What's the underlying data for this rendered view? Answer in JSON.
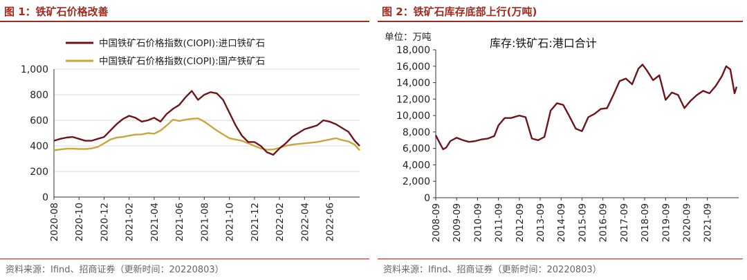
{
  "left": {
    "title": "图 1：铁矿石价格改善",
    "source": "资料来源：Ifind、招商证券（更新时间：20220803）"
  },
  "right": {
    "title": "图 2：铁矿石库存底部上行(万吨)",
    "source": "资料来源：Ifind、招商证券（更新时间：20220803）"
  },
  "chart_data": [
    {
      "type": "line",
      "title": "铁矿石价格改善",
      "ylim": [
        0,
        1000
      ],
      "yticks": [
        "1,000",
        "800",
        "600",
        "400",
        "200",
        "0"
      ],
      "ytick_values": [
        1000,
        800,
        600,
        400,
        200,
        0
      ],
      "xticks": [
        "2020-08",
        "2020-10",
        "2020-12",
        "2021-02",
        "2021-04",
        "2021-06",
        "2021-08",
        "2021-10",
        "2021-12",
        "2022-02",
        "2022-04",
        "2022-06"
      ],
      "xlim_index": [
        0,
        24.4
      ],
      "grid": true,
      "legend_position": "top",
      "colors": {
        "imported": "#6e1419",
        "domestic": "#c9a63a"
      },
      "series": [
        {
          "name": "中国铁矿石价格指数(CIOPI):进口铁矿石",
          "x": [
            0,
            0.5,
            1,
            1.5,
            2,
            2.5,
            3,
            3.5,
            4,
            4.5,
            5,
            5.5,
            6,
            6.5,
            7,
            7.5,
            8,
            8.5,
            9,
            9.5,
            10,
            10.5,
            11,
            11.5,
            12,
            12.5,
            13,
            13.5,
            14,
            14.5,
            15,
            15.5,
            16,
            16.5,
            17,
            17.5,
            18,
            18.5,
            19,
            19.5,
            20,
            20.5,
            21,
            21.5,
            22,
            22.5,
            23,
            23.5,
            24,
            24.4
          ],
          "values": [
            440,
            455,
            465,
            470,
            455,
            440,
            440,
            455,
            470,
            520,
            570,
            610,
            635,
            620,
            590,
            600,
            620,
            590,
            650,
            690,
            720,
            780,
            830,
            760,
            800,
            820,
            810,
            760,
            660,
            560,
            480,
            430,
            430,
            400,
            350,
            330,
            380,
            420,
            470,
            500,
            530,
            545,
            560,
            600,
            590,
            570,
            540,
            510,
            440,
            400
          ]
        },
        {
          "name": "中国铁矿石价格指数(CIOPI):国产铁矿石",
          "x": [
            0,
            0.5,
            1,
            1.5,
            2,
            2.5,
            3,
            3.5,
            4,
            4.5,
            5,
            5.5,
            6,
            6.5,
            7,
            7.5,
            8,
            8.5,
            9,
            9.5,
            10,
            10.5,
            11,
            11.5,
            12,
            12.5,
            13,
            13.5,
            14,
            14.5,
            15,
            15.5,
            16,
            16.5,
            17,
            17.5,
            18,
            18.5,
            19,
            19.5,
            20,
            20.5,
            21,
            21.5,
            22,
            22.5,
            23,
            23.5,
            24,
            24.4
          ],
          "values": [
            365,
            372,
            378,
            378,
            376,
            375,
            380,
            392,
            420,
            450,
            465,
            470,
            480,
            488,
            490,
            500,
            495,
            520,
            560,
            605,
            595,
            605,
            612,
            615,
            590,
            555,
            520,
            490,
            460,
            450,
            440,
            420,
            400,
            380,
            370,
            372,
            385,
            400,
            410,
            415,
            420,
            425,
            430,
            440,
            450,
            460,
            445,
            435,
            410,
            365
          ]
        }
      ]
    },
    {
      "type": "line",
      "title": "铁矿石库存底部上行(万吨)",
      "unit_label": "单位：万吨",
      "ylim": [
        0,
        18000
      ],
      "yticks": [
        "18,000",
        "16,000",
        "14,000",
        "12,000",
        "10,000",
        "8,000",
        "6,000",
        "4,000",
        "2,000",
        "0"
      ],
      "ytick_values": [
        18000,
        16000,
        14000,
        12000,
        10000,
        8000,
        6000,
        4000,
        2000,
        0
      ],
      "xticks": [
        "2008-09",
        "2009-09",
        "2010-09",
        "2011-09",
        "2012-09",
        "2013-09",
        "2014-09",
        "2015-09",
        "2016-09",
        "2017-09",
        "2018-09",
        "2019-09",
        "2020-09",
        "2021-09"
      ],
      "xlim_index": [
        0,
        14.5
      ],
      "grid": false,
      "color": "#6e1419",
      "series": [
        {
          "name": "库存:铁矿石:港口合计",
          "x": [
            0,
            0.2,
            0.35,
            0.5,
            0.7,
            1,
            1.3,
            1.6,
            1.9,
            2.2,
            2.5,
            2.8,
            3,
            3.3,
            3.6,
            4,
            4.3,
            4.6,
            4.9,
            5.2,
            5.5,
            5.8,
            6.1,
            6.4,
            6.7,
            7,
            7.3,
            7.6,
            7.9,
            8.2,
            8.5,
            8.8,
            9.1,
            9.4,
            9.7,
            9.9,
            10.1,
            10.4,
            10.7,
            11,
            11.3,
            11.6,
            11.9,
            12.2,
            12.5,
            12.8,
            13.1,
            13.4,
            13.7,
            13.9,
            14.1,
            14.3,
            14.4
          ],
          "values": [
            7600,
            6600,
            5900,
            6100,
            6900,
            7300,
            7000,
            6800,
            6900,
            7100,
            7200,
            7500,
            8800,
            9700,
            9700,
            10000,
            9800,
            7200,
            7000,
            7400,
            10600,
            11500,
            11300,
            9900,
            8400,
            8100,
            9800,
            10200,
            10800,
            10900,
            12500,
            14200,
            14500,
            13800,
            15700,
            16200,
            15500,
            14300,
            14900,
            11900,
            12800,
            12500,
            10900,
            11800,
            12500,
            13000,
            12700,
            13600,
            14800,
            16000,
            15600,
            12700,
            13500
          ]
        }
      ]
    }
  ]
}
